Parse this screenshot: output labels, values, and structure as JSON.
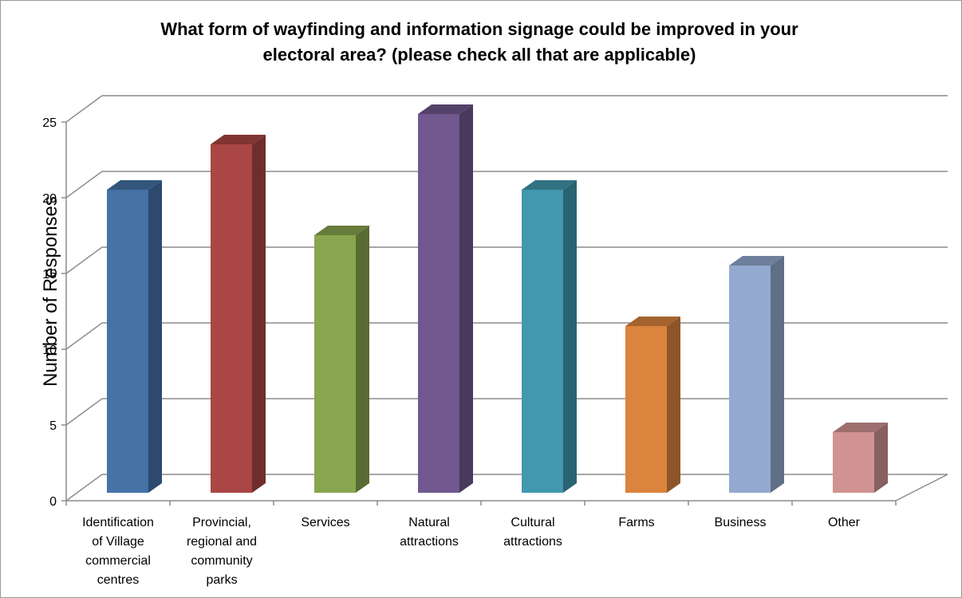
{
  "chart_data": {
    "type": "bar",
    "title_lines": [
      "What form of wayfinding and information signage could be improved in your",
      "electoral area? (please check all that are applicable)"
    ],
    "xlabel": "",
    "ylabel": "Number of Responses",
    "ylim": [
      0,
      25
    ],
    "yticks": [
      "0",
      "5",
      "10",
      "15",
      "20",
      "25"
    ],
    "grid": true,
    "legend": "none",
    "categories": [
      [
        "Identification",
        "of Village",
        "commercial",
        "centres"
      ],
      [
        "Provincial,",
        "regional and",
        "community",
        "parks"
      ],
      [
        "Services"
      ],
      [
        "Natural",
        "attractions"
      ],
      [
        "Cultural",
        "attractions"
      ],
      [
        "Farms"
      ],
      [
        "Business"
      ],
      [
        "Other"
      ]
    ],
    "values": [
      20,
      23,
      17,
      25,
      20,
      11,
      15,
      4
    ],
    "colors": [
      "#4572a7",
      "#aa4643",
      "#89a54e",
      "#71588f",
      "#4198af",
      "#db843d",
      "#93a9cf",
      "#d09392"
    ]
  }
}
